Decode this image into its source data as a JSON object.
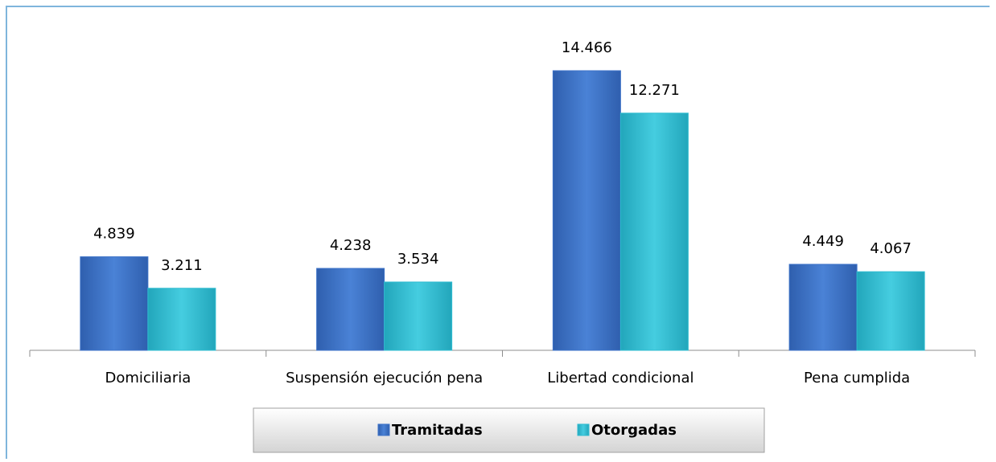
{
  "chart_data": {
    "type": "bar",
    "categories": [
      "Domiciliaria",
      "Suspensión ejecución pena",
      "Libertad condicional",
      "Pena cumplida"
    ],
    "series": [
      {
        "name": "Tramitadas",
        "color": "#3c72c8",
        "values": [
          4839,
          4238,
          14466,
          4449
        ],
        "value_labels": [
          "4.839",
          "4.238",
          "14.466",
          "4.449"
        ]
      },
      {
        "name": "Otorgadas",
        "color": "#2fbcd0",
        "values": [
          3211,
          3534,
          12271,
          4067
        ],
        "value_labels": [
          "3.211",
          "3.534",
          "12.271",
          "4.067"
        ]
      }
    ],
    "legend": "bottom"
  }
}
